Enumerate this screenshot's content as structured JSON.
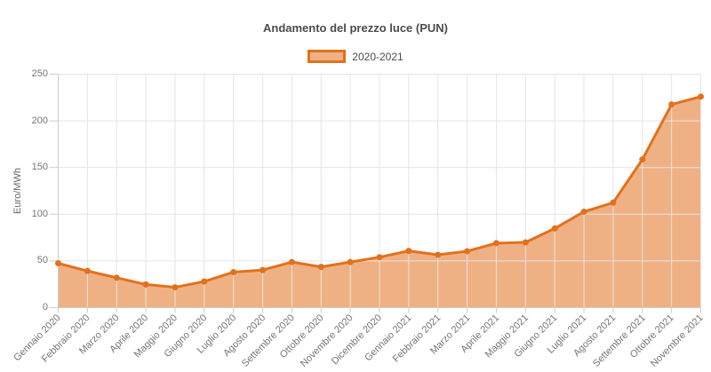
{
  "chart_data": {
    "type": "area",
    "title": "Andamento del prezzo luce (PUN)",
    "categories": [
      "Gennaio 2020",
      "Febbraio 2020",
      "Marzo 2020",
      "Aprile 2020",
      "Maggio 2020",
      "Giugno 2020",
      "Luglio 2020",
      "Agosto 2020",
      "Settembre 2020",
      "Ottobre 2020",
      "Novembre 2020",
      "Dicembre 2020",
      "Gennaio 2021",
      "Febbraio 2021",
      "Marzo 2021",
      "Aprile 2021",
      "Maggio 2021",
      "Giugno 2021",
      "Luglio 2021",
      "Agosto 2021",
      "Settembre 2021",
      "Ottobre 2021",
      "Novembre 2021"
    ],
    "series": [
      {
        "name": "2020-2021",
        "values": [
          47.5,
          39.3,
          32.0,
          24.8,
          21.8,
          28.0,
          38.0,
          40.3,
          48.8,
          43.6,
          48.8,
          54.0,
          60.7,
          56.6,
          60.4,
          69.0,
          69.9,
          84.8,
          102.7,
          112.4,
          158.6,
          217.6,
          225.9
        ]
      }
    ],
    "xlabel": "",
    "ylabel": "Euro/MWh",
    "ylim": [
      0,
      250
    ],
    "yticks": [
      0,
      50,
      100,
      150,
      200,
      250
    ],
    "grid": true,
    "legend_position": "top"
  },
  "colors": {
    "line": "#e2711d",
    "fill": "rgba(226,113,29,0.55)",
    "grid": "#e4e4e4",
    "axis": "#cccccc",
    "tick_label": "#757575",
    "title_text": "#4c4c4c"
  }
}
